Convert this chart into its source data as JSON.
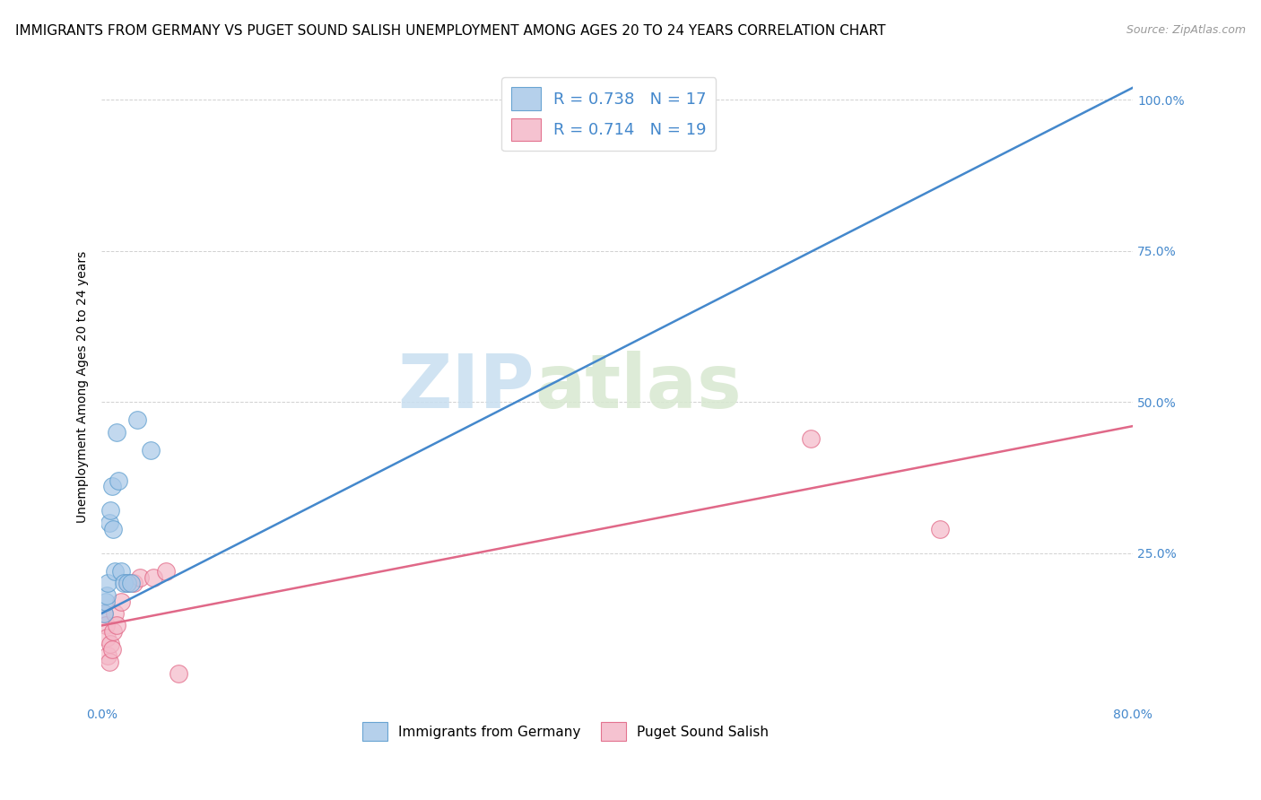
{
  "title": "IMMIGRANTS FROM GERMANY VS PUGET SOUND SALISH UNEMPLOYMENT AMONG AGES 20 TO 24 YEARS CORRELATION CHART",
  "source": "Source: ZipAtlas.com",
  "ylabel": "Unemployment Among Ages 20 to 24 years",
  "watermark_left": "ZIP",
  "watermark_right": "atlas",
  "xlim": [
    0.0,
    0.8
  ],
  "ylim": [
    0.0,
    1.05
  ],
  "xticks": [
    0.0,
    0.2,
    0.4,
    0.6,
    0.8
  ],
  "xticklabels": [
    "0.0%",
    "",
    "",
    "",
    "80.0%"
  ],
  "yticks": [
    0.25,
    0.5,
    0.75,
    1.0
  ],
  "yticklabels": [
    "25.0%",
    "50.0%",
    "75.0%",
    "100.0%"
  ],
  "blue_R": 0.738,
  "blue_N": 17,
  "pink_R": 0.714,
  "pink_N": 19,
  "blue_color": "#a8c8e8",
  "pink_color": "#f4b8c8",
  "blue_edge_color": "#5599cc",
  "pink_edge_color": "#e06080",
  "blue_line_color": "#4488cc",
  "pink_line_color": "#e06888",
  "legend_label_blue": "Immigrants from Germany",
  "legend_label_pink": "Puget Sound Salish",
  "blue_x": [
    0.002,
    0.003,
    0.004,
    0.005,
    0.006,
    0.007,
    0.008,
    0.009,
    0.01,
    0.012,
    0.013,
    0.015,
    0.017,
    0.02,
    0.023,
    0.028,
    0.038
  ],
  "blue_y": [
    0.15,
    0.17,
    0.18,
    0.2,
    0.3,
    0.32,
    0.36,
    0.29,
    0.22,
    0.45,
    0.37,
    0.22,
    0.2,
    0.2,
    0.2,
    0.47,
    0.42
  ],
  "pink_x": [
    0.002,
    0.003,
    0.004,
    0.005,
    0.006,
    0.007,
    0.008,
    0.009,
    0.01,
    0.012,
    0.015,
    0.02,
    0.025,
    0.03,
    0.04,
    0.05,
    0.06,
    0.55,
    0.65
  ],
  "pink_y": [
    0.15,
    0.13,
    0.11,
    0.08,
    0.07,
    0.1,
    0.09,
    0.12,
    0.15,
    0.13,
    0.17,
    0.2,
    0.2,
    0.21,
    0.21,
    0.22,
    0.05,
    0.44,
    0.29
  ],
  "blue_line_x": [
    0.0,
    0.8
  ],
  "blue_line_y": [
    0.15,
    1.02
  ],
  "pink_line_x": [
    0.0,
    0.8
  ],
  "pink_line_y": [
    0.13,
    0.46
  ],
  "title_fontsize": 11,
  "axis_label_fontsize": 10,
  "tick_fontsize": 10,
  "marker_size": 200,
  "background_color": "#ffffff",
  "grid_color": "#cccccc",
  "tick_color": "#4488cc"
}
